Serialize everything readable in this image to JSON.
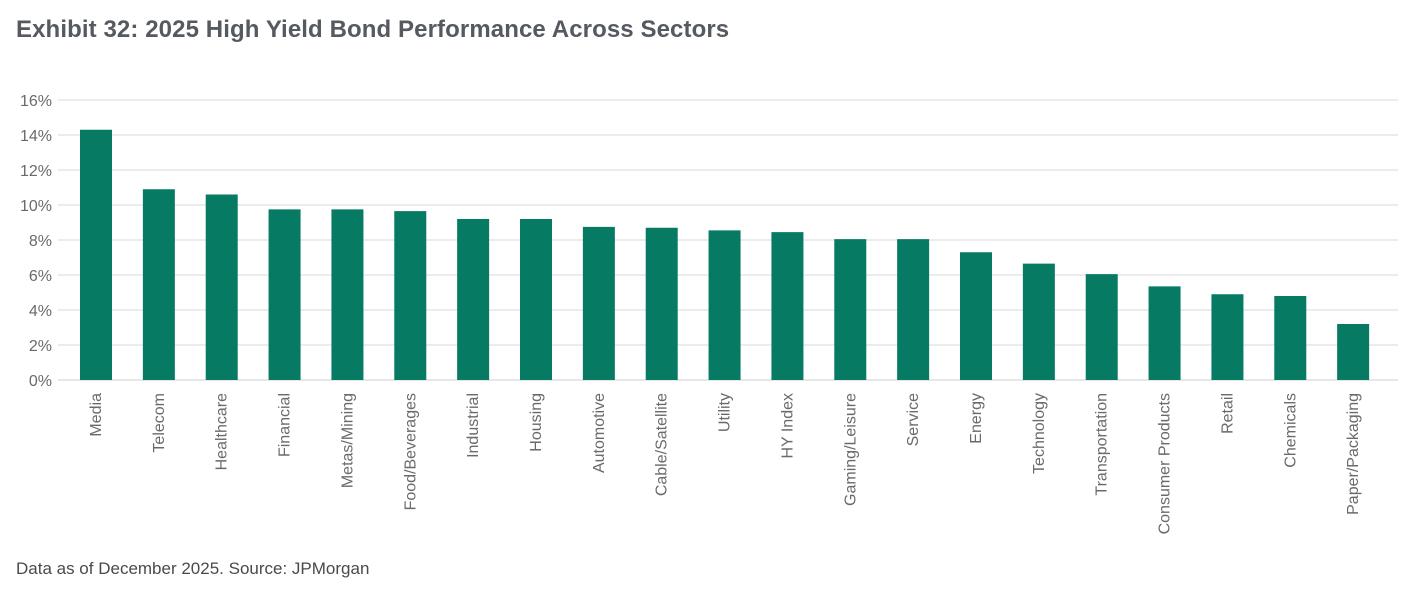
{
  "title": "Exhibit 32: 2025 High Yield Bond Performance Across Sectors",
  "footnote": "Data as of December 2025. Source: JPMorgan",
  "colors": {
    "bar": "#077a63",
    "title": "#555a60",
    "grid": "#d9d9d9"
  },
  "chart_data": {
    "type": "bar",
    "title": "Exhibit 32: 2025 High Yield Bond Performance Across Sectors",
    "xlabel": "",
    "ylabel": "",
    "ylim": [
      0,
      16
    ],
    "yticks": [
      "0%",
      "2%",
      "4%",
      "6%",
      "8%",
      "10%",
      "12%",
      "14%",
      "16%"
    ],
    "grid": true,
    "categories": [
      "Media",
      "Telecom",
      "Healthcare",
      "Financial",
      "Metas/Mining",
      "Food/Beverages",
      "Industrial",
      "Housing",
      "Automotive",
      "Cable/Satellite",
      "Utility",
      "HY Index",
      "Gaming/Leisure",
      "Service",
      "Energy",
      "Technology",
      "Transportation",
      "Consumer Products",
      "Retail",
      "Chemicals",
      "Paper/Packaging"
    ],
    "values": [
      14.3,
      10.9,
      10.6,
      9.75,
      9.75,
      9.65,
      9.2,
      9.2,
      8.75,
      8.7,
      8.55,
      8.45,
      8.05,
      8.05,
      7.3,
      6.65,
      6.05,
      5.35,
      4.9,
      4.8,
      3.2
    ]
  }
}
